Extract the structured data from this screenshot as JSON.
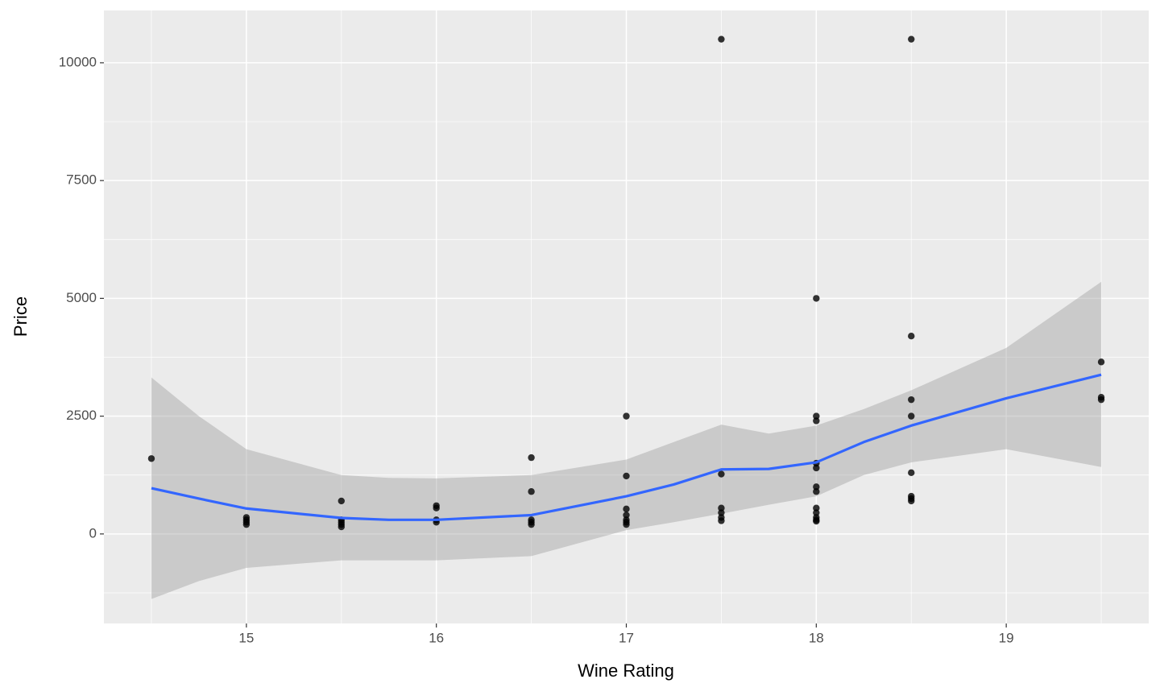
{
  "chart_data": {
    "type": "scatter",
    "x_label": "Wine Rating",
    "y_label": "Price",
    "xlim": [
      14.25,
      19.75
    ],
    "xticks": [
      15,
      16,
      17,
      18,
      19
    ],
    "ylim": [
      -1900,
      11110
    ],
    "yticks": [
      0,
      2500,
      5000,
      7500,
      10000
    ],
    "grid": true,
    "grid_minor": true,
    "points": {
      "color": "#000000",
      "x": [
        14.5,
        15,
        15,
        15,
        15,
        15.5,
        15.5,
        15.5,
        15.5,
        15.5,
        16,
        16,
        16,
        16,
        16.5,
        16.5,
        16.5,
        16.5,
        16.5,
        17,
        17,
        17,
        17,
        17,
        17,
        17,
        17.5,
        17.5,
        17.5,
        17.5,
        17.5,
        17.5,
        18,
        18,
        18,
        18,
        18,
        18,
        18,
        18,
        18,
        18,
        18,
        18,
        18.5,
        18.5,
        18.5,
        18.5,
        18.5,
        18.5,
        18.5,
        18.5,
        19.5,
        19.5,
        19.5
      ],
      "values": [
        1600,
        200,
        250,
        300,
        350,
        700,
        300,
        250,
        200,
        150,
        600,
        550,
        300,
        250,
        1620,
        900,
        300,
        250,
        200,
        2500,
        1230,
        530,
        400,
        300,
        250,
        200,
        10500,
        1270,
        550,
        450,
        350,
        280,
        5000,
        2500,
        2400,
        1500,
        1400,
        1000,
        900,
        550,
        450,
        350,
        300,
        270,
        10500,
        4200,
        2850,
        2500,
        1300,
        800,
        750,
        700,
        3650,
        2900,
        2850
      ]
    },
    "smooth": {
      "color": "#3366ff",
      "band_color": "#999999",
      "x": [
        14.5,
        14.75,
        15,
        15.5,
        15.75,
        16,
        16.5,
        17,
        17.25,
        17.5,
        17.75,
        18,
        18.25,
        18.5,
        19,
        19.5
      ],
      "values": [
        970,
        750,
        540,
        340,
        300,
        300,
        400,
        800,
        1050,
        1370,
        1380,
        1520,
        1950,
        2300,
        2880,
        3380
      ],
      "upper": [
        3320,
        2500,
        1800,
        1250,
        1190,
        1180,
        1250,
        1580,
        1950,
        2320,
        2130,
        2300,
        2650,
        3050,
        3950,
        5350
      ],
      "lower": [
        -1380,
        -1000,
        -720,
        -560,
        -560,
        -560,
        -470,
        80,
        250,
        430,
        620,
        800,
        1250,
        1520,
        1800,
        1420
      ]
    }
  }
}
